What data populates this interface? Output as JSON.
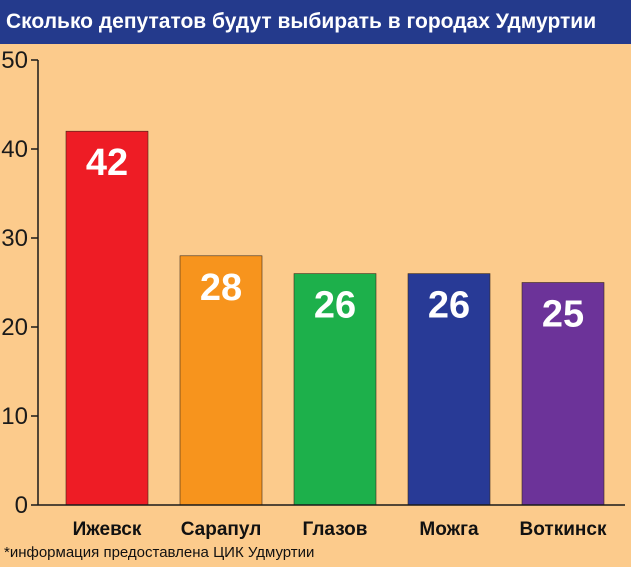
{
  "header": {
    "title": "Сколько депутатов будут выбирать в городах Удмуртии"
  },
  "footnote": "*информация предоставлена ЦИК Удмуртии",
  "colors": {
    "background": "#FCCB8C",
    "title_bar": "#243A8C",
    "axis": "#1A1A1A"
  },
  "chart_data": {
    "type": "bar",
    "title": "Сколько депутатов будут выбирать в городах Удмуртии",
    "xlabel": "",
    "ylabel": "",
    "categories": [
      "Ижевск",
      "Сарапул",
      "Глазов",
      "Можга",
      "Воткинск"
    ],
    "values": [
      42,
      28,
      26,
      26,
      25
    ],
    "data_labels": [
      "42",
      "28",
      "26",
      "26",
      "25"
    ],
    "bar_colors": [
      "#EE1C25",
      "#F7941D",
      "#1DB04B",
      "#283A96",
      "#6C3399"
    ],
    "ylim": [
      0,
      50
    ],
    "yticks": [
      0,
      10,
      20,
      30,
      40,
      50
    ],
    "ytick_labels": [
      "0",
      "10",
      "20",
      "30",
      "40",
      "50"
    ],
    "grid": false,
    "legend": "none"
  }
}
